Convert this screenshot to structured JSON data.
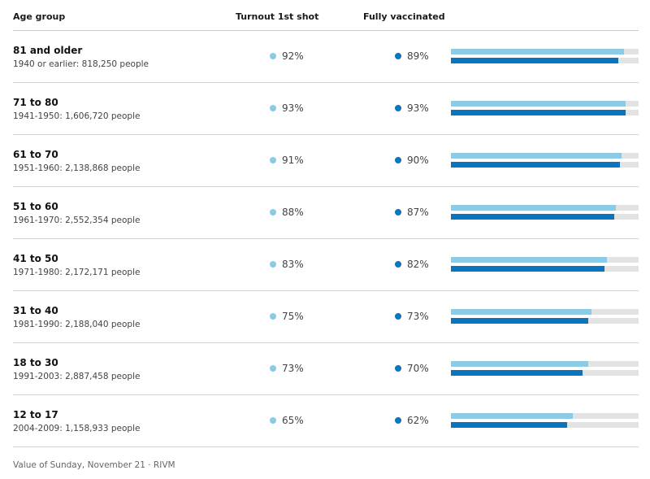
{
  "header": {
    "age_group": "Age group",
    "turnout_first": "Turnout 1st shot",
    "fully_vaccinated": "Fully vaccinated"
  },
  "colors": {
    "first_shot": "#8ccbe6",
    "fully_vaccinated": "#0a74bf",
    "track": "#e3e3e3"
  },
  "chart_data": {
    "type": "bar",
    "categories": [
      "81 and older",
      "71 to 80",
      "61 to 70",
      "51 to 60",
      "41 to 50",
      "31 to 40",
      "18 to 30",
      "12 to 17"
    ],
    "subtitles": [
      "1940 or earlier: 818,250 people",
      "1941-1950: 1,606,720 people",
      "1951-1960: 2,138,868 people",
      "1961-1970: 2,552,354 people",
      "1971-1980: 2,172,171 people",
      "1981-1990: 2,188,040 people",
      "1991-2003: 2,887,458 people",
      "2004-2009: 1,158,933 people"
    ],
    "series": [
      {
        "name": "Turnout 1st shot",
        "values": [
          92,
          93,
          91,
          88,
          83,
          75,
          73,
          65
        ],
        "labels": [
          "92%",
          "93%",
          "91%",
          "88%",
          "83%",
          "75%",
          "73%",
          "65%"
        ]
      },
      {
        "name": "Fully vaccinated",
        "values": [
          89,
          93,
          90,
          87,
          82,
          73,
          70,
          62
        ],
        "labels": [
          "89%",
          "93%",
          "90%",
          "87%",
          "82%",
          "73%",
          "70%",
          "62%"
        ]
      }
    ],
    "ylim": [
      0,
      100
    ]
  },
  "footer": "Value of Sunday, November 21 · RIVM"
}
